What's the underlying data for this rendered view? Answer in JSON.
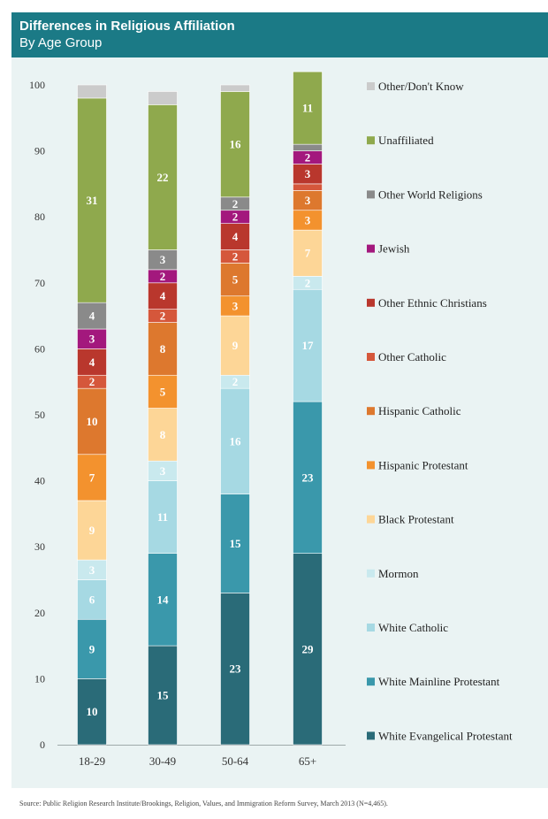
{
  "header": {
    "title": "Differences in Religious Affiliation",
    "subtitle": "By Age Group"
  },
  "source": "Source: Public Religion Research Institute/Brookings, Religion, Values, and Immigration Reform Survey, March 2013 (N=4,465).",
  "chart_data": {
    "type": "bar",
    "stacked": true,
    "categories": [
      "18-29",
      "30-49",
      "50-64",
      "65+"
    ],
    "ylim": [
      0,
      100
    ],
    "yticks": [
      0,
      10,
      20,
      30,
      40,
      50,
      60,
      70,
      80,
      90,
      100
    ],
    "grid": false,
    "legend_position": "right",
    "series": [
      {
        "name": "White Evangelical Protestant",
        "color": "#2a6b78",
        "values": [
          10,
          15,
          23,
          29
        ],
        "labels": [
          "10",
          "15",
          "23",
          "29"
        ]
      },
      {
        "name": "White Mainline Protestant",
        "color": "#3a98ab",
        "values": [
          9,
          14,
          15,
          23
        ],
        "labels": [
          "9",
          "14",
          "15",
          "23"
        ]
      },
      {
        "name": "White Catholic",
        "color": "#a6d9e3",
        "values": [
          6,
          11,
          16,
          17
        ],
        "labels": [
          "6",
          "11",
          "16",
          "17"
        ]
      },
      {
        "name": "Mormon",
        "color": "#c9e9ee",
        "values": [
          3,
          3,
          2,
          2
        ],
        "labels": [
          "3",
          "3",
          "2",
          "2"
        ]
      },
      {
        "name": "Black Protestant",
        "color": "#fdd697",
        "values": [
          9,
          8,
          9,
          7
        ],
        "labels": [
          "9",
          "8",
          "9",
          "7"
        ]
      },
      {
        "name": "Hispanic Protestant",
        "color": "#f3922e",
        "values": [
          7,
          5,
          3,
          3
        ],
        "labels": [
          "7",
          "5",
          "3",
          "3"
        ]
      },
      {
        "name": "Hispanic Catholic",
        "color": "#dd782e",
        "values": [
          10,
          8,
          5,
          3
        ],
        "labels": [
          "10",
          "8",
          "5",
          "3"
        ]
      },
      {
        "name": "Other Catholic",
        "color": "#d5573b",
        "values": [
          2,
          2,
          2,
          1
        ],
        "labels": [
          "2",
          "2",
          "2",
          ""
        ]
      },
      {
        "name": "Other Ethnic Christians",
        "color": "#b9372d",
        "values": [
          4,
          4,
          4,
          3
        ],
        "labels": [
          "4",
          "4",
          "4",
          "3"
        ]
      },
      {
        "name": "Jewish",
        "color": "#a3187d",
        "values": [
          3,
          2,
          2,
          2
        ],
        "labels": [
          "3",
          "2",
          "2",
          "2"
        ]
      },
      {
        "name": "Other World Religions",
        "color": "#8a8a8a",
        "values": [
          4,
          3,
          2,
          1
        ],
        "labels": [
          "4",
          "3",
          "2",
          ""
        ]
      },
      {
        "name": "Unaffiliated",
        "color": "#8fa94d",
        "values": [
          31,
          22,
          16,
          11
        ],
        "labels": [
          "31",
          "22",
          "16",
          "11"
        ]
      },
      {
        "name": "Other/Don't Know",
        "color": "#cbcbcb",
        "values": [
          2,
          2,
          1,
          0
        ],
        "labels": [
          "",
          "",
          "",
          ""
        ]
      }
    ]
  }
}
